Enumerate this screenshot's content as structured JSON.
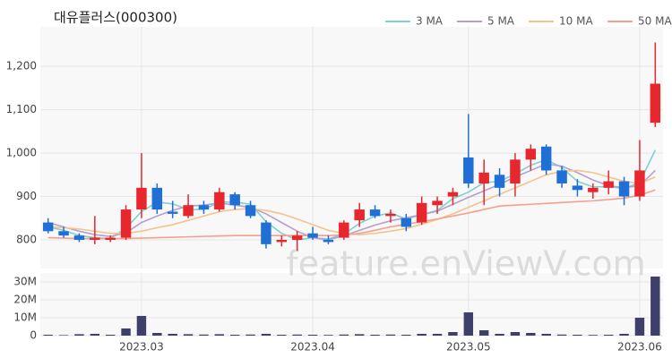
{
  "chart_data": [
    {
      "type": "candlestick",
      "title": "대유플러스(000300)",
      "watermark": "feature.enViewV.com",
      "up_color": "#e8262d",
      "down_color": "#1f6fd6",
      "open": [
        840,
        820,
        810,
        800,
        800,
        805,
        870,
        920,
        865,
        855,
        880,
        870,
        905,
        880,
        840,
        795,
        800,
        815,
        800,
        805,
        845,
        870,
        855,
        850,
        840,
        880,
        900,
        990,
        930,
        950,
        930,
        985,
        1015,
        960,
        925,
        910,
        920,
        935,
        900,
        1070
      ],
      "high": [
        850,
        830,
        815,
        855,
        810,
        880,
        1000,
        930,
        890,
        905,
        890,
        920,
        910,
        890,
        845,
        810,
        820,
        830,
        810,
        845,
        885,
        880,
        870,
        860,
        900,
        900,
        920,
        1090,
        985,
        965,
        1000,
        1020,
        1020,
        970,
        940,
        930,
        960,
        945,
        1030,
        1255
      ],
      "low": [
        815,
        805,
        795,
        790,
        795,
        800,
        850,
        860,
        850,
        850,
        860,
        865,
        870,
        850,
        780,
        785,
        775,
        800,
        790,
        800,
        830,
        850,
        840,
        820,
        835,
        860,
        880,
        920,
        880,
        900,
        900,
        960,
        950,
        920,
        900,
        895,
        905,
        880,
        890,
        1060
      ],
      "close": [
        820,
        810,
        800,
        805,
        805,
        870,
        920,
        870,
        860,
        880,
        870,
        910,
        880,
        855,
        790,
        800,
        810,
        805,
        795,
        840,
        870,
        855,
        860,
        830,
        885,
        890,
        910,
        930,
        955,
        920,
        985,
        1010,
        960,
        930,
        915,
        920,
        935,
        900,
        960,
        1160
      ],
      "series": [
        {
          "name": "3 MA",
          "color": "#7fd0cf",
          "values": [
            830,
            822,
            810,
            805,
            803,
            827,
            865,
            887,
            883,
            870,
            870,
            887,
            887,
            882,
            842,
            815,
            800,
            805,
            802,
            813,
            838,
            855,
            862,
            848,
            858,
            868,
            895,
            910,
            932,
            935,
            952,
            972,
            985,
            967,
            935,
            922,
            923,
            918,
            932,
            1007
          ]
        },
        {
          "name": "5 MA",
          "color": "#b49fd0",
          "values": [
            840,
            830,
            820,
            812,
            808,
            816,
            840,
            855,
            868,
            878,
            880,
            885,
            880,
            875,
            860,
            840,
            820,
            805,
            800,
            810,
            822,
            834,
            844,
            851,
            858,
            866,
            882,
            898,
            913,
            928,
            945,
            960,
            975,
            970,
            955,
            938,
            925,
            920,
            925,
            960
          ]
        },
        {
          "name": "10 MA",
          "color": "#f5c28c",
          "values": [
            830,
            828,
            825,
            820,
            815,
            815,
            820,
            828,
            835,
            845,
            855,
            865,
            870,
            872,
            868,
            860,
            848,
            835,
            822,
            815,
            812,
            815,
            820,
            826,
            836,
            847,
            860,
            875,
            890,
            905,
            920,
            935,
            950,
            958,
            960,
            955,
            945,
            935,
            930,
            945
          ]
        },
        {
          "name": "50 MA",
          "color": "#f4a08c",
          "values": [
            805,
            804,
            803,
            803,
            803,
            803,
            804,
            805,
            806,
            807,
            808,
            809,
            810,
            810,
            810,
            810,
            810,
            810,
            810,
            811,
            815,
            822,
            830,
            836,
            842,
            848,
            855,
            862,
            870,
            878,
            880,
            882,
            884,
            886,
            888,
            890,
            893,
            896,
            903,
            915
          ]
        }
      ],
      "ylim": [
        734,
        1291
      ],
      "yticks": [
        800,
        900,
        {
          "value": 1000,
          "label": "1,000"
        },
        {
          "value": 1100,
          "label": "1,100"
        },
        {
          "value": 1200,
          "label": "1,200"
        }
      ],
      "grid": true
    },
    {
      "type": "bar",
      "color": "#3f3f6b",
      "categories": [
        null,
        null,
        null,
        null,
        null,
        null,
        "2023.03",
        null,
        null,
        null,
        null,
        null,
        null,
        null,
        null,
        null,
        null,
        "2023.04",
        null,
        null,
        null,
        null,
        null,
        null,
        null,
        null,
        null,
        "2023.05",
        null,
        null,
        null,
        null,
        null,
        null,
        null,
        null,
        null,
        null,
        "2023.06",
        null
      ],
      "values": [
        500000,
        300000,
        800000,
        1000000,
        500000,
        4000000,
        11000000,
        1500000,
        1000000,
        800000,
        600000,
        800000,
        500000,
        600000,
        1000000,
        500000,
        600000,
        500000,
        400000,
        600000,
        800000,
        500000,
        600000,
        500000,
        1000000,
        1000000,
        2000000,
        13000000,
        3000000,
        1000000,
        2000000,
        1500000,
        1000000,
        600000,
        500000,
        400000,
        500000,
        1000000,
        10000000,
        33000000
      ],
      "ylim": [
        0,
        35000000
      ],
      "yticks": [
        0,
        {
          "value": 10000000,
          "label": "10M"
        },
        {
          "value": 20000000,
          "label": "20M"
        },
        {
          "value": 30000000,
          "label": "30M"
        }
      ],
      "grid": true
    }
  ]
}
